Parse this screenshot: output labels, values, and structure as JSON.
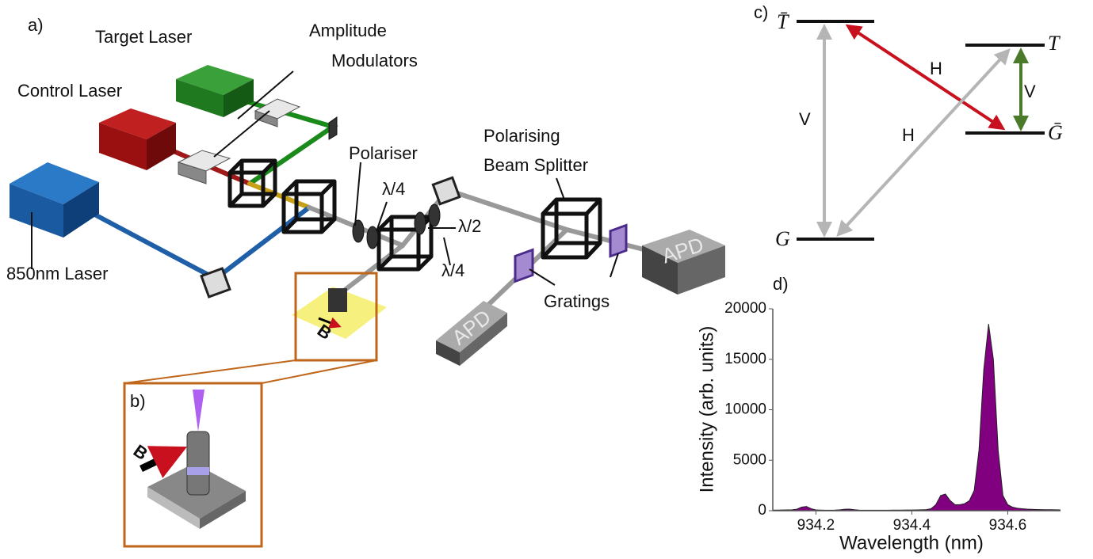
{
  "panel_a": {
    "label": "a)",
    "target_laser": "Target Laser",
    "amplitude_modulators": [
      "Amplitude",
      "Modulators"
    ],
    "control_laser": "Control Laser",
    "laser_850": "850nm Laser",
    "polariser": "Polariser",
    "quarter_wave_1": "λ/4",
    "half_wave": "λ/2",
    "quarter_wave_2": "λ/4",
    "beam_splitter": [
      "Polarising",
      "Beam Splitter"
    ],
    "gratings": "Gratings",
    "apd_1": "APD",
    "apd_2": "APD",
    "field": "B"
  },
  "panel_b": {
    "label": "b)",
    "field": "B"
  },
  "panel_c": {
    "label": "c)",
    "levels": [
      "T̄",
      "T",
      "Ḡ",
      "G"
    ],
    "transitions": [
      "V",
      "H",
      "H",
      "V"
    ]
  },
  "chart_data": {
    "type": "area",
    "panel_label": "d)",
    "x_label": "Wavelength (nm)",
    "y_label": "Intensity (arb. units)",
    "color": "#800080",
    "x": [
      934.11,
      934.12,
      934.13,
      934.14,
      934.15,
      934.16,
      934.17,
      934.18,
      934.19,
      934.2,
      934.21,
      934.22,
      934.23,
      934.24,
      934.25,
      934.26,
      934.27,
      934.28,
      934.29,
      934.3,
      934.31,
      934.32,
      934.33,
      934.34,
      934.35,
      934.36,
      934.37,
      934.38,
      934.39,
      934.4,
      934.41,
      934.42,
      934.43,
      934.44,
      934.45,
      934.46,
      934.47,
      934.48,
      934.49,
      934.5,
      934.51,
      934.52,
      934.53,
      934.54,
      934.55,
      934.56,
      934.57,
      934.58,
      934.59,
      934.6,
      934.61,
      934.62,
      934.63,
      934.64,
      934.65,
      934.66,
      934.67,
      934.68,
      934.69,
      934.7,
      934.71
    ],
    "values": [
      60,
      60,
      70,
      80,
      90,
      150,
      350,
      420,
      200,
      80,
      60,
      50,
      50,
      60,
      90,
      150,
      160,
      100,
      60,
      50,
      50,
      50,
      50,
      50,
      50,
      60,
      60,
      60,
      70,
      70,
      80,
      90,
      110,
      200,
      600,
      1500,
      1650,
      1000,
      600,
      600,
      700,
      1000,
      2000,
      6000,
      14000,
      18500,
      15000,
      6000,
      1500,
      600,
      350,
      250,
      200,
      160,
      140,
      120,
      110,
      100,
      100,
      90,
      80
    ],
    "xlim": [
      934.11,
      934.71
    ],
    "xticks": [
      934.2,
      934.4,
      934.6
    ],
    "ylim": [
      0,
      20000
    ],
    "yticks": [
      0,
      5000,
      10000,
      15000,
      20000
    ]
  }
}
